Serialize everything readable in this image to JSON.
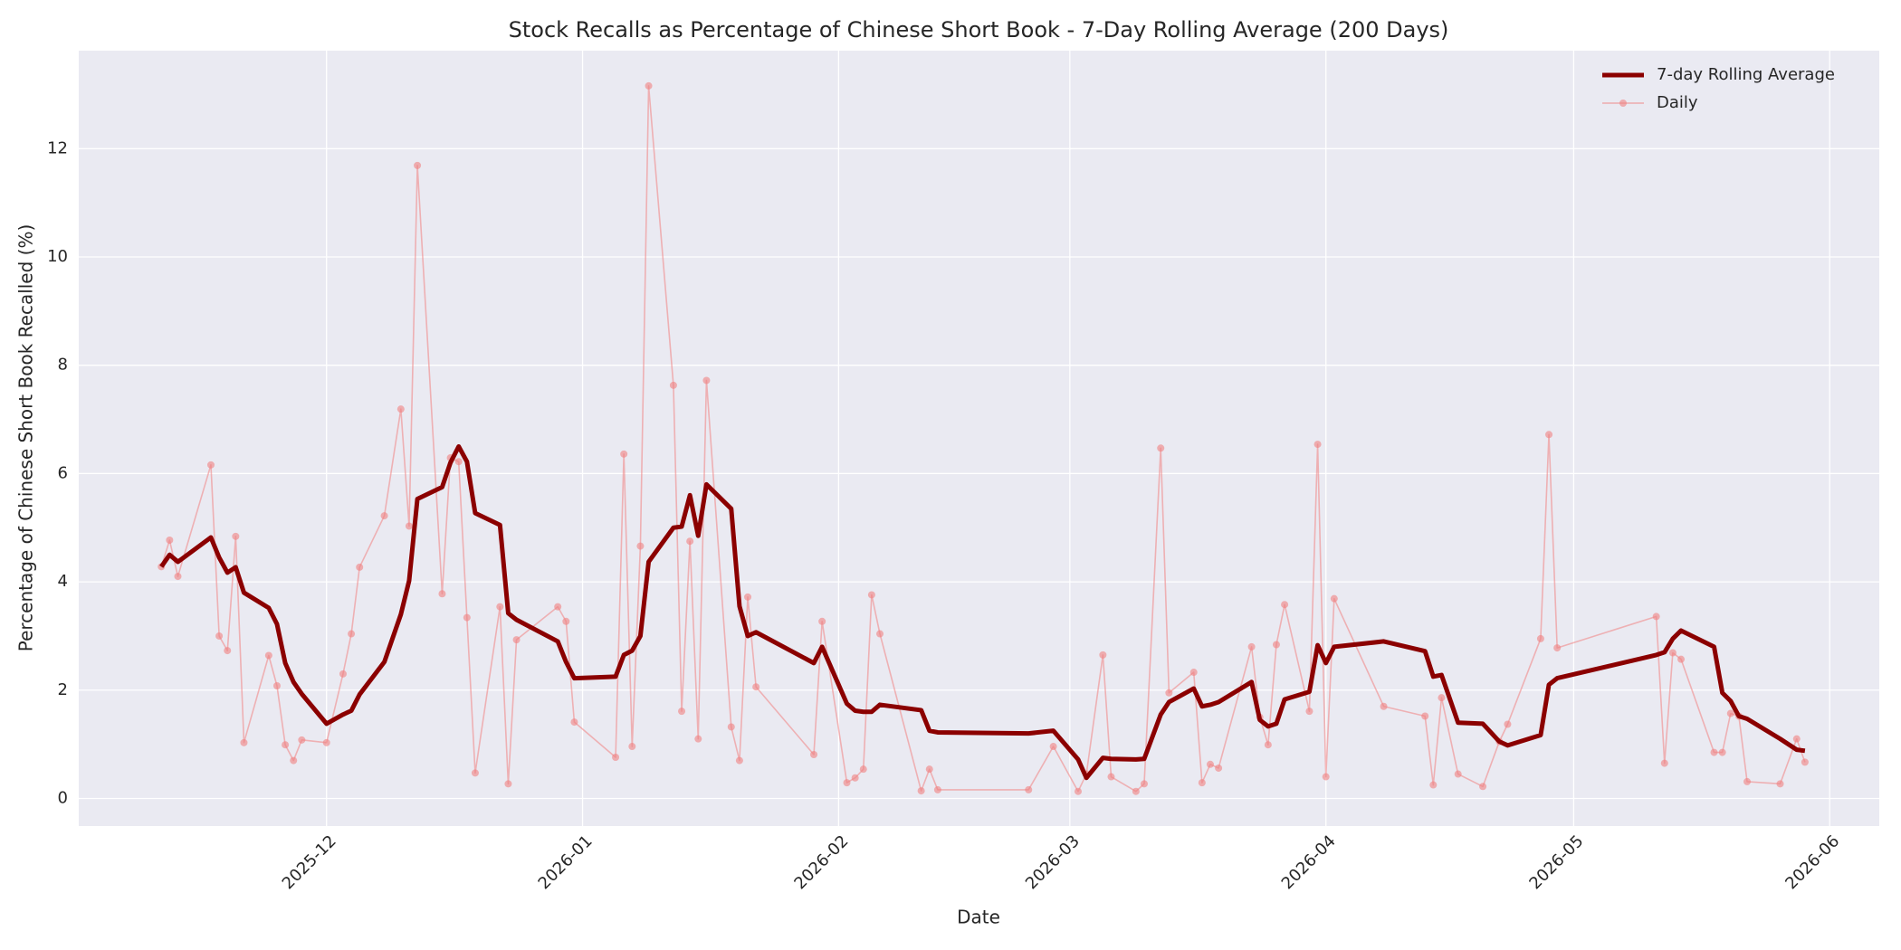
{
  "chart_data": {
    "type": "line",
    "title": "Stock Recalls as Percentage of Chinese Short Book - 7-Day Rolling Average (200 Days)",
    "x_label": "Date",
    "y_label": "Percentage of Chinese Short Book Recalled (%)",
    "x": [
      "2025-11-11",
      "2025-11-12",
      "2025-11-13",
      "2025-11-17",
      "2025-11-18",
      "2025-11-19",
      "2025-11-20",
      "2025-11-21",
      "2025-11-24",
      "2025-11-25",
      "2025-11-26",
      "2025-11-27",
      "2025-11-28",
      "2025-12-01",
      "2025-12-03",
      "2025-12-04",
      "2025-12-05",
      "2025-12-08",
      "2025-12-10",
      "2025-12-11",
      "2025-12-12",
      "2025-12-15",
      "2025-12-16",
      "2025-12-17",
      "2025-12-18",
      "2025-12-19",
      "2025-12-22",
      "2025-12-23",
      "2025-12-24",
      "2025-12-29",
      "2025-12-30",
      "2025-12-31",
      "2026-01-05",
      "2026-01-06",
      "2026-01-07",
      "2026-01-08",
      "2026-01-09",
      "2026-01-12",
      "2026-01-13",
      "2026-01-14",
      "2026-01-15",
      "2026-01-16",
      "2026-01-19",
      "2026-01-20",
      "2026-01-21",
      "2026-01-22",
      "2026-01-29",
      "2026-01-30",
      "2026-02-02",
      "2026-02-03",
      "2026-02-04",
      "2026-02-05",
      "2026-02-06",
      "2026-02-11",
      "2026-02-12",
      "2026-02-13",
      "2026-02-24",
      "2026-02-27",
      "2026-03-02",
      "2026-03-03",
      "2026-03-05",
      "2026-03-06",
      "2026-03-09",
      "2026-03-10",
      "2026-03-12",
      "2026-03-13",
      "2026-03-16",
      "2026-03-17",
      "2026-03-18",
      "2026-03-19",
      "2026-03-23",
      "2026-03-24",
      "2026-03-25",
      "2026-03-26",
      "2026-03-27",
      "2026-03-30",
      "2026-03-31",
      "2026-04-01",
      "2026-04-02",
      "2026-04-08",
      "2026-04-13",
      "2026-04-14",
      "2026-04-15",
      "2026-04-17",
      "2026-04-20",
      "2026-04-22",
      "2026-04-23",
      "2026-04-27",
      "2026-04-28",
      "2026-04-29",
      "2026-05-11",
      "2026-05-12",
      "2026-05-13",
      "2026-05-14",
      "2026-05-18",
      "2026-05-19",
      "2026-05-20",
      "2026-05-21",
      "2026-05-22",
      "2026-05-26",
      "2026-05-28",
      "2026-05-29"
    ],
    "series": [
      {
        "name": "7-day Rolling Average",
        "color": "#8b0000",
        "values": [
          4.28,
          4.5,
          4.37,
          4.82,
          4.45,
          4.17,
          4.27,
          3.8,
          3.52,
          3.22,
          2.5,
          2.15,
          1.93,
          1.38,
          1.55,
          1.62,
          1.92,
          2.52,
          3.4,
          4.02,
          5.53,
          5.75,
          6.2,
          6.5,
          6.22,
          5.27,
          5.05,
          3.42,
          3.3,
          2.9,
          2.52,
          2.22,
          2.25,
          2.65,
          2.73,
          3.0,
          4.37,
          5.0,
          5.02,
          5.6,
          4.85,
          5.8,
          5.35,
          3.55,
          3.0,
          3.07,
          2.5,
          2.8,
          1.75,
          1.62,
          1.6,
          1.6,
          1.73,
          1.63,
          1.25,
          1.22,
          1.2,
          1.25,
          0.72,
          0.38,
          0.75,
          0.73,
          0.72,
          0.73,
          1.55,
          1.78,
          2.03,
          1.7,
          1.73,
          1.78,
          2.15,
          1.45,
          1.33,
          1.38,
          1.83,
          1.97,
          2.83,
          2.5,
          2.8,
          2.9,
          2.72,
          2.25,
          2.28,
          1.4,
          1.38,
          1.05,
          0.98,
          1.17,
          2.1,
          2.22,
          2.65,
          2.7,
          2.95,
          3.1,
          2.8,
          1.95,
          1.8,
          1.52,
          1.47,
          1.1,
          0.9,
          0.88
        ]
      },
      {
        "name": "Daily",
        "color": "#f08080",
        "marker": "circle",
        "values": [
          4.28,
          4.77,
          4.1,
          6.16,
          3.0,
          2.73,
          4.84,
          1.03,
          2.64,
          2.08,
          0.99,
          0.7,
          1.08,
          1.03,
          2.3,
          3.04,
          4.27,
          5.22,
          7.19,
          5.03,
          11.69,
          3.78,
          6.29,
          6.22,
          3.34,
          0.47,
          3.54,
          0.27,
          2.93,
          3.54,
          3.27,
          1.41,
          0.76,
          6.36,
          0.96,
          4.66,
          13.16,
          7.63,
          1.61,
          4.75,
          1.1,
          7.72,
          1.32,
          0.7,
          3.72,
          2.06,
          0.81,
          3.27,
          0.29,
          0.38,
          0.54,
          3.76,
          3.04,
          0.14,
          0.54,
          0.16,
          0.16,
          0.96,
          0.13,
          0.45,
          2.65,
          0.4,
          0.13,
          0.27,
          6.47,
          1.95,
          2.33,
          0.29,
          0.63,
          0.56,
          2.8,
          1.5,
          0.99,
          2.84,
          3.58,
          1.61,
          6.54,
          0.4,
          3.69,
          1.7,
          1.52,
          0.25,
          1.86,
          0.45,
          0.22,
          1.05,
          1.37,
          2.95,
          6.72,
          2.78,
          3.36,
          0.65,
          2.69,
          2.57,
          0.85,
          0.85,
          1.57,
          1.52,
          0.31,
          0.27,
          1.1,
          0.67
        ]
      }
    ],
    "xlim": [
      "2025-11-01",
      "2026-06-07"
    ],
    "xticks": [
      {
        "value": "2025-12-01",
        "label": "2025-12"
      },
      {
        "value": "2026-01-01",
        "label": "2026-01"
      },
      {
        "value": "2026-02-01",
        "label": "2026-02"
      },
      {
        "value": "2026-03-01",
        "label": "2026-03"
      },
      {
        "value": "2026-04-01",
        "label": "2026-04"
      },
      {
        "value": "2026-05-01",
        "label": "2026-05"
      },
      {
        "value": "2026-06-01",
        "label": "2026-06"
      }
    ],
    "ylim": [
      -0.51,
      13.81
    ],
    "yticks": [
      0,
      2,
      4,
      6,
      8,
      10,
      12
    ],
    "grid": true,
    "legend": "upper right"
  }
}
